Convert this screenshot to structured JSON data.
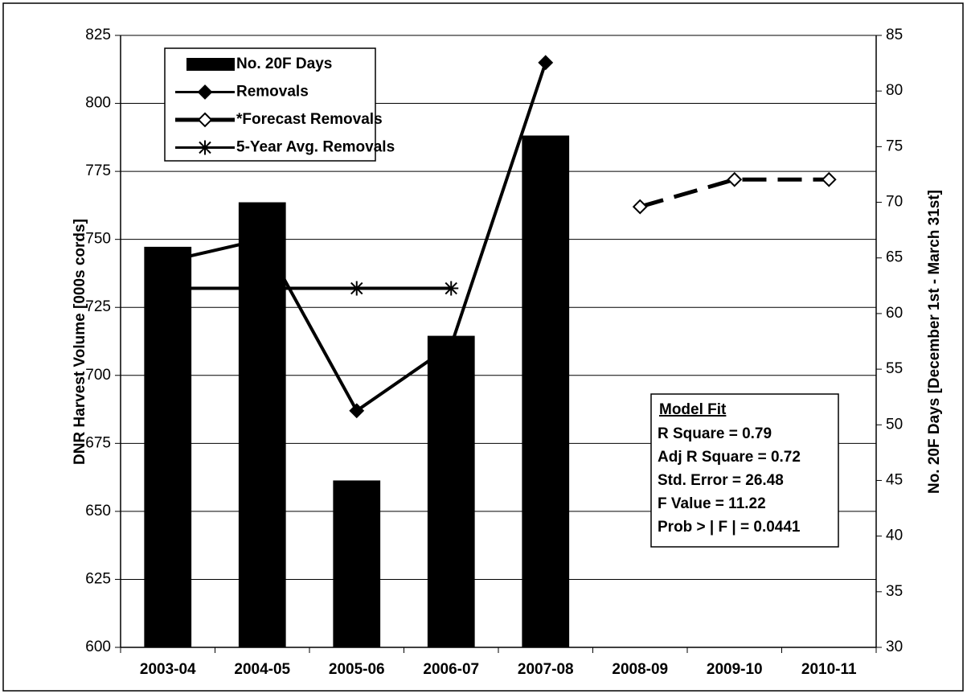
{
  "chart_data": {
    "type": "bar",
    "y_label": "DNR Harvest Volume [000s cords]",
    "y2_label": "No. 20F Days [December 1st - March 31st]",
    "categories": [
      "2003-04",
      "2004-05",
      "2005-06",
      "2006-07",
      "2007-08",
      "2008-09",
      "2009-10",
      "2010-11"
    ],
    "ylim": [
      600,
      825
    ],
    "yticks": [
      600,
      625,
      650,
      675,
      700,
      725,
      750,
      775,
      800,
      825
    ],
    "y2lim": [
      30,
      85
    ],
    "y2ticks": [
      30,
      35,
      40,
      45,
      50,
      55,
      60,
      65,
      70,
      75,
      80,
      85
    ],
    "grid": true,
    "series": [
      {
        "name": "No. 20F Days",
        "type": "bar",
        "axis": "y2",
        "color": "#000000",
        "values": [
          66,
          70,
          45,
          58,
          76,
          null,
          null,
          null
        ]
      },
      {
        "name": "Removals",
        "type": "line",
        "marker": "diamond",
        "dash": false,
        "color": "#000000",
        "values": [
          742,
          750,
          687,
          711,
          815,
          null,
          null,
          null
        ]
      },
      {
        "name": "*Forecast Removals",
        "type": "line",
        "marker": "open-diamond",
        "dash": true,
        "color": "#000000",
        "values": [
          null,
          null,
          null,
          null,
          null,
          762,
          772,
          772
        ]
      },
      {
        "name": "5-Year Avg. Removals",
        "type": "line",
        "marker": "star",
        "dash": false,
        "color": "#000000",
        "values": [
          732,
          732,
          732,
          732,
          null,
          null,
          null,
          null
        ]
      }
    ],
    "model_fit": {
      "title": "Model Fit",
      "lines": [
        "R Square = 0.79",
        "Adj R Square = 0.72",
        "Std. Error = 26.48",
        "F Value = 11.22",
        "Prob > | F | = 0.0441"
      ]
    }
  }
}
